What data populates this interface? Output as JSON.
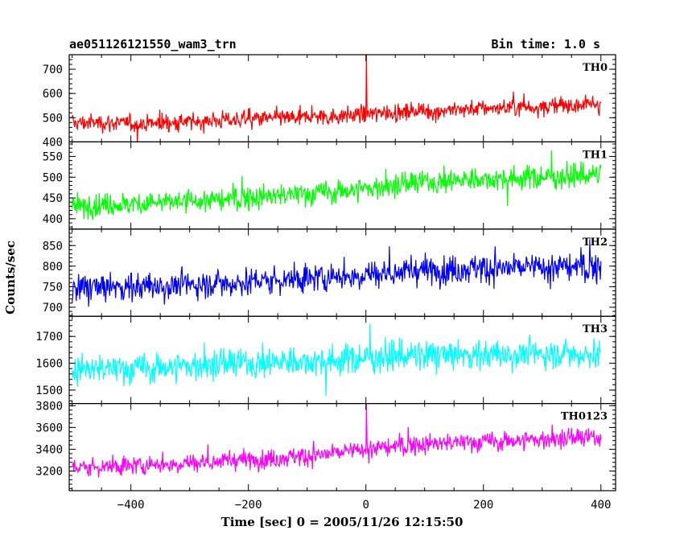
{
  "header": {
    "left_title": "ae051126121550_wam3_trn",
    "right_title": "Bin time: 1.0 s"
  },
  "chart_data": {
    "type": "line",
    "xlabel": "Time [sec] 0 = 2005/11/26 12:15:50",
    "ylabel": "Counts/sec",
    "xlim": [
      -505,
      425
    ],
    "xticks": [
      -400,
      -200,
      0,
      200,
      400
    ],
    "xtick_labels": [
      "−400",
      "−200",
      "0",
      "200",
      "400"
    ],
    "x": [
      -500,
      -450,
      -400,
      -350,
      -300,
      -250,
      -200,
      -150,
      -100,
      -50,
      0,
      50,
      100,
      150,
      200,
      250,
      300,
      350,
      400
    ],
    "series": [
      {
        "name": "TH0",
        "color": "#ff0000",
        "ylim": [
          400,
          760
        ],
        "yticks": [
          400,
          500,
          600,
          700
        ],
        "values": [
          478,
          480,
          475,
          478,
          482,
          490,
          495,
          498,
          502,
          506,
          515,
          522,
          528,
          533,
          538,
          542,
          546,
          552,
          560
        ],
        "noise": 60,
        "spikes": [
          {
            "x": 1,
            "y": 760
          }
        ]
      },
      {
        "name": "TH1",
        "color": "#00ff00",
        "ylim": [
          375,
          585
        ],
        "yticks": [
          400,
          450,
          500,
          550
        ],
        "values": [
          430,
          433,
          436,
          438,
          442,
          445,
          450,
          455,
          460,
          466,
          472,
          480,
          488,
          492,
          496,
          498,
          500,
          502,
          505
        ],
        "noise": 48,
        "spikes": []
      },
      {
        "name": "TH2",
        "color": "#0000ff",
        "ylim": [
          678,
          890
        ],
        "yticks": [
          700,
          750,
          800,
          850
        ],
        "values": [
          745,
          748,
          750,
          752,
          755,
          758,
          762,
          766,
          770,
          775,
          780,
          785,
          790,
          793,
          795,
          796,
          797,
          798,
          795
        ],
        "noise": 60,
        "spikes": []
      },
      {
        "name": "TH3",
        "color": "#00ffff",
        "ylim": [
          1450,
          1775
        ],
        "yticks": [
          1500,
          1600,
          1700
        ],
        "values": [
          1575,
          1578,
          1580,
          1585,
          1590,
          1595,
          1600,
          1605,
          1608,
          1612,
          1620,
          1625,
          1628,
          1630,
          1632,
          1634,
          1635,
          1636,
          1635
        ],
        "noise": 95,
        "spikes": []
      },
      {
        "name": "TH0123",
        "color": "#ff00ff",
        "ylim": [
          3020,
          3820
        ],
        "yticks": [
          3200,
          3400,
          3600,
          3800
        ],
        "values": [
          3230,
          3240,
          3250,
          3262,
          3275,
          3290,
          3305,
          3320,
          3340,
          3365,
          3400,
          3425,
          3445,
          3460,
          3470,
          3480,
          3490,
          3500,
          3505
        ],
        "noise": 150,
        "spikes": [
          {
            "x": 1,
            "y": 3820
          }
        ]
      }
    ],
    "grid": false
  }
}
